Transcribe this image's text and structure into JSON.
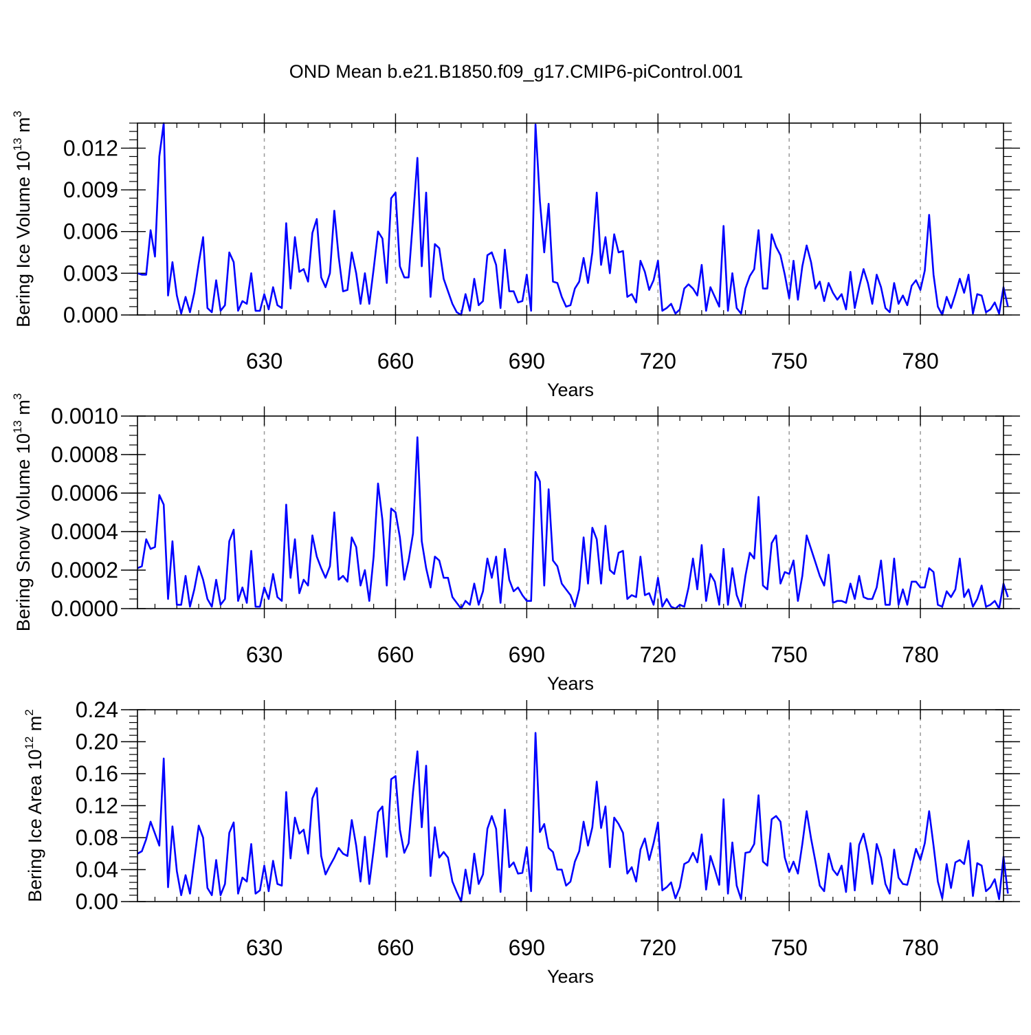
{
  "figure": {
    "title": "OND Mean b.e21.B1850.f09_g17.CMIP6-piControl.001",
    "line_color": "#0000ff",
    "grid_color": "#9a9a9a"
  },
  "chart_data": [
    {
      "type": "line",
      "ylabel": "Bering Ice Volume 10",
      "ylabel_exp": "13",
      "ylabel_unit": " m",
      "ylabel_unit_exp": "3",
      "xlabel": "Years",
      "x_start": 601,
      "x_end": 799,
      "xlim": [
        601,
        799
      ],
      "ylim": [
        0,
        0.0138
      ],
      "yticks": [
        0,
        0.003,
        0.006,
        0.009,
        0.012
      ],
      "ytick_labels": [
        "0.000",
        "0.003",
        "0.006",
        "0.009",
        "0.012"
      ],
      "yminor": 0.0006,
      "xticks": [
        630,
        660,
        690,
        720,
        750,
        780
      ],
      "xtick_labels": [
        "630",
        "660",
        "690",
        "720",
        "750",
        "780"
      ],
      "values": [
        0.003,
        0.0029,
        0.0029,
        0.0061,
        0.0042,
        0.0114,
        0.0138,
        0.0014,
        0.0038,
        0.0014,
        0.0001,
        0.0013,
        0.0002,
        0.0016,
        0.0037,
        0.0056,
        0.0005,
        0.0002,
        0.0025,
        0.0003,
        0.0007,
        0.0045,
        0.0038,
        0.0003,
        0.001,
        0.0008,
        0.003,
        0.0003,
        0.0003,
        0.0015,
        0.0004,
        0.002,
        0.0007,
        0.0005,
        0.0066,
        0.0019,
        0.0056,
        0.0031,
        0.0033,
        0.0024,
        0.0059,
        0.0069,
        0.0027,
        0.002,
        0.003,
        0.0075,
        0.0042,
        0.0017,
        0.0018,
        0.0045,
        0.003,
        0.0008,
        0.003,
        0.0008,
        0.0033,
        0.006,
        0.0055,
        0.0023,
        0.0084,
        0.0088,
        0.0035,
        0.0027,
        0.0027,
        0.0069,
        0.0113,
        0.0035,
        0.0088,
        0.0013,
        0.0051,
        0.0048,
        0.0026,
        0.0017,
        0.0008,
        0.0002,
        0.0,
        0.0015,
        0.0003,
        0.0026,
        0.0007,
        0.001,
        0.0043,
        0.0045,
        0.0036,
        0.0005,
        0.0047,
        0.0017,
        0.0017,
        0.0009,
        0.001,
        0.0029,
        0.0003,
        0.0137,
        0.0082,
        0.0045,
        0.008,
        0.0024,
        0.0023,
        0.0013,
        0.0006,
        0.0007,
        0.0019,
        0.0024,
        0.0041,
        0.0023,
        0.0045,
        0.0088,
        0.0036,
        0.0056,
        0.003,
        0.0058,
        0.0045,
        0.0046,
        0.0013,
        0.0015,
        0.0009,
        0.0039,
        0.0031,
        0.0018,
        0.0025,
        0.0039,
        0.0003,
        0.0005,
        0.0008,
        0.0001,
        0.0004,
        0.0019,
        0.0022,
        0.0019,
        0.0014,
        0.0036,
        0.0003,
        0.002,
        0.0013,
        0.0006,
        0.0064,
        0.0003,
        0.003,
        0.0005,
        0.0001,
        0.0019,
        0.0028,
        0.0033,
        0.0061,
        0.0019,
        0.0019,
        0.0058,
        0.0049,
        0.0043,
        0.0029,
        0.0012,
        0.0039,
        0.0011,
        0.0035,
        0.005,
        0.0038,
        0.0019,
        0.0024,
        0.001,
        0.0023,
        0.0016,
        0.0011,
        0.0015,
        0.0004,
        0.0031,
        0.0005,
        0.002,
        0.0033,
        0.0023,
        0.0008,
        0.0029,
        0.002,
        0.0005,
        0.0002,
        0.0023,
        0.0008,
        0.0014,
        0.0007,
        0.0021,
        0.0025,
        0.0018,
        0.0032,
        0.0072,
        0.0029,
        0.0006,
        0.0,
        0.0013,
        0.0005,
        0.0015,
        0.0026,
        0.0016,
        0.0029,
        0.0001,
        0.0015,
        0.0014,
        0.0002,
        0.0004,
        0.0009,
        0.0001,
        0.002,
        0.0006
      ]
    },
    {
      "type": "line",
      "ylabel": "Bering Snow Volume 10",
      "ylabel_exp": "13",
      "ylabel_unit": " m",
      "ylabel_unit_exp": "3",
      "xlabel": "Years",
      "x_start": 601,
      "x_end": 799,
      "xlim": [
        601,
        799
      ],
      "ylim": [
        0,
        0.001
      ],
      "yticks": [
        0,
        0.0002,
        0.0004,
        0.0006,
        0.0008,
        0.001
      ],
      "ytick_labels": [
        "0.0000",
        "0.0002",
        "0.0004",
        "0.0006",
        "0.0008",
        "0.0010"
      ],
      "yminor": 5e-05,
      "xticks": [
        630,
        660,
        690,
        720,
        750,
        780
      ],
      "xtick_labels": [
        "630",
        "660",
        "690",
        "720",
        "750",
        "780"
      ],
      "values": [
        0.00021,
        0.00022,
        0.00036,
        0.00031,
        0.00032,
        0.00059,
        0.00054,
        5e-05,
        0.00035,
        2e-05,
        2e-05,
        0.00017,
        1e-05,
        0.0001,
        0.00022,
        0.00015,
        5e-05,
        1e-05,
        0.00015,
        2e-05,
        5e-05,
        0.00035,
        0.00041,
        4e-05,
        0.00011,
        3e-05,
        0.0003,
        1e-05,
        1e-05,
        0.00011,
        5e-05,
        0.00018,
        6e-05,
        4e-05,
        0.00054,
        0.00016,
        0.00036,
        8e-05,
        0.00015,
        0.00012,
        0.00038,
        0.00027,
        0.00021,
        0.00016,
        0.00022,
        0.0005,
        0.00015,
        0.00017,
        0.00014,
        0.00037,
        0.00032,
        0.00012,
        0.0002,
        4e-05,
        0.00027,
        0.00065,
        0.00046,
        0.00012,
        0.00052,
        0.0005,
        0.00037,
        0.00015,
        0.00025,
        0.00039,
        0.00089,
        0.00035,
        0.00021,
        0.00011,
        0.00027,
        0.00025,
        0.00016,
        0.00016,
        6e-05,
        3e-05,
        0.0,
        4e-05,
        2e-05,
        0.00013,
        2e-05,
        9e-05,
        0.00026,
        0.00016,
        0.00027,
        3e-05,
        0.00031,
        0.00015,
        9e-05,
        0.00011,
        7e-05,
        4e-05,
        4e-05,
        0.00071,
        0.00066,
        0.00012,
        0.00062,
        0.00025,
        0.00022,
        0.00013,
        0.0001,
        7e-05,
        1e-05,
        0.0001,
        0.00037,
        0.00013,
        0.00042,
        0.00036,
        0.00013,
        0.00043,
        0.0002,
        0.00018,
        0.00029,
        0.0003,
        5e-05,
        7e-05,
        6e-05,
        0.00027,
        7e-05,
        8e-05,
        2e-05,
        0.00016,
        1e-05,
        5e-05,
        1e-05,
        0.0,
        2e-05,
        1e-05,
        0.00011,
        0.00026,
        0.0001,
        0.00033,
        4e-05,
        0.00018,
        0.00014,
        2e-05,
        0.00031,
        2e-05,
        0.00021,
        7e-05,
        1e-05,
        0.00017,
        0.00029,
        0.00026,
        0.00058,
        0.00012,
        0.0001,
        0.00034,
        0.00038,
        0.00013,
        0.00019,
        0.00018,
        0.00025,
        4e-05,
        0.00017,
        0.00038,
        0.00031,
        0.00024,
        0.00017,
        0.00012,
        0.00028,
        3e-05,
        4e-05,
        4e-05,
        3e-05,
        0.00013,
        5e-05,
        0.00017,
        6e-05,
        5e-05,
        5e-05,
        0.00011,
        0.00025,
        2e-05,
        2e-05,
        0.00026,
        2e-05,
        0.0001,
        2e-05,
        0.00014,
        0.00014,
        0.00011,
        0.00011,
        0.00021,
        0.00019,
        2e-05,
        1e-05,
        9e-05,
        6e-05,
        0.0001,
        0.00026,
        6e-05,
        0.0001,
        1e-05,
        5e-05,
        0.00012,
        1e-05,
        2e-05,
        4e-05,
        0.0,
        0.00013,
        6e-05
      ]
    },
    {
      "type": "line",
      "ylabel": "Bering Ice Area 10",
      "ylabel_exp": "12",
      "ylabel_unit": " m",
      "ylabel_unit_exp": "2",
      "xlabel": "Years",
      "x_start": 601,
      "x_end": 799,
      "xlim": [
        601,
        799
      ],
      "ylim": [
        0,
        0.24
      ],
      "yticks": [
        0,
        0.04,
        0.08,
        0.12,
        0.16,
        0.2,
        0.24
      ],
      "ytick_labels": [
        "0.00",
        "0.04",
        "0.08",
        "0.12",
        "0.16",
        "0.20",
        "0.24"
      ],
      "yminor": 0.008,
      "xticks": [
        630,
        660,
        690,
        720,
        750,
        780
      ],
      "xtick_labels": [
        "630",
        "660",
        "690",
        "720",
        "750",
        "780"
      ],
      "values": [
        0.06,
        0.063,
        0.078,
        0.1,
        0.085,
        0.07,
        0.179,
        0.018,
        0.094,
        0.038,
        0.008,
        0.033,
        0.01,
        0.052,
        0.095,
        0.08,
        0.017,
        0.008,
        0.052,
        0.008,
        0.022,
        0.086,
        0.099,
        0.01,
        0.03,
        0.025,
        0.072,
        0.01,
        0.014,
        0.045,
        0.013,
        0.051,
        0.022,
        0.02,
        0.137,
        0.054,
        0.105,
        0.085,
        0.09,
        0.06,
        0.129,
        0.142,
        0.057,
        0.034,
        0.045,
        0.055,
        0.067,
        0.06,
        0.057,
        0.102,
        0.07,
        0.025,
        0.081,
        0.022,
        0.065,
        0.112,
        0.119,
        0.056,
        0.153,
        0.157,
        0.09,
        0.061,
        0.073,
        0.137,
        0.188,
        0.093,
        0.17,
        0.032,
        0.093,
        0.055,
        0.062,
        0.055,
        0.025,
        0.012,
        0.0,
        0.04,
        0.01,
        0.06,
        0.022,
        0.034,
        0.091,
        0.107,
        0.091,
        0.012,
        0.115,
        0.043,
        0.049,
        0.035,
        0.036,
        0.068,
        0.013,
        0.211,
        0.087,
        0.097,
        0.067,
        0.062,
        0.04,
        0.04,
        0.02,
        0.025,
        0.05,
        0.063,
        0.1,
        0.07,
        0.093,
        0.15,
        0.092,
        0.119,
        0.043,
        0.105,
        0.097,
        0.086,
        0.035,
        0.043,
        0.025,
        0.065,
        0.079,
        0.052,
        0.073,
        0.099,
        0.014,
        0.018,
        0.024,
        0.004,
        0.018,
        0.047,
        0.05,
        0.061,
        0.049,
        0.084,
        0.015,
        0.057,
        0.04,
        0.021,
        0.128,
        0.01,
        0.074,
        0.02,
        0.003,
        0.061,
        0.062,
        0.072,
        0.133,
        0.05,
        0.045,
        0.103,
        0.107,
        0.1,
        0.055,
        0.037,
        0.05,
        0.035,
        0.072,
        0.113,
        0.079,
        0.05,
        0.02,
        0.013,
        0.06,
        0.04,
        0.033,
        0.045,
        0.012,
        0.073,
        0.014,
        0.071,
        0.085,
        0.06,
        0.022,
        0.072,
        0.055,
        0.022,
        0.01,
        0.065,
        0.03,
        0.022,
        0.021,
        0.043,
        0.066,
        0.052,
        0.073,
        0.113,
        0.07,
        0.025,
        0.004,
        0.047,
        0.017,
        0.049,
        0.052,
        0.047,
        0.076,
        0.007,
        0.048,
        0.045,
        0.013,
        0.018,
        0.028,
        0.003,
        0.056,
        0.01
      ]
    }
  ]
}
